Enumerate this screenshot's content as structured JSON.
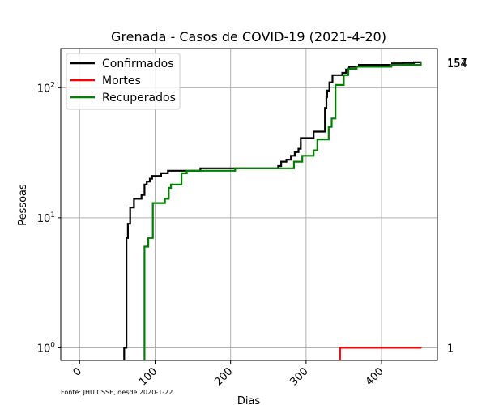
{
  "chart_data": {
    "type": "line",
    "title": "Grenada - Casos de COVID-19 (2021-4-20)",
    "xlabel": "Dias",
    "ylabel": "Pessoas",
    "yscale": "log",
    "xlim": [
      -25,
      474
    ],
    "ylim": [
      0.8,
      200
    ],
    "xticks": [
      0,
      100,
      200,
      300,
      400
    ],
    "xtick_labels": [
      "0",
      "100",
      "200",
      "300",
      "400"
    ],
    "xtick_rotation": 45,
    "yticks": [
      1,
      10,
      100
    ],
    "grid": true,
    "legend_position": "top-left",
    "source_note": "Fonte: JHU CSSE, desde 2020-1-22",
    "series": [
      {
        "name": "Confirmados",
        "color": "#000000",
        "points": [
          [
            59,
            0.5
          ],
          [
            59,
            1
          ],
          [
            62,
            1
          ],
          [
            62,
            7
          ],
          [
            64,
            7
          ],
          [
            64,
            9
          ],
          [
            67,
            9
          ],
          [
            67,
            12
          ],
          [
            72,
            12
          ],
          [
            72,
            14
          ],
          [
            82,
            14
          ],
          [
            82,
            15
          ],
          [
            86,
            15
          ],
          [
            86,
            18
          ],
          [
            89,
            18
          ],
          [
            89,
            19
          ],
          [
            93,
            19
          ],
          [
            93,
            20
          ],
          [
            96,
            20
          ],
          [
            96,
            21
          ],
          [
            108,
            21
          ],
          [
            108,
            22
          ],
          [
            117,
            22
          ],
          [
            117,
            23
          ],
          [
            160,
            23
          ],
          [
            160,
            24
          ],
          [
            178,
            24
          ],
          [
            178,
            24
          ],
          [
            263,
            24
          ],
          [
            263,
            25
          ],
          [
            267,
            25
          ],
          [
            267,
            27
          ],
          [
            274,
            27
          ],
          [
            274,
            28
          ],
          [
            280,
            28
          ],
          [
            280,
            30
          ],
          [
            285,
            30
          ],
          [
            285,
            32
          ],
          [
            290,
            32
          ],
          [
            290,
            34
          ],
          [
            293,
            34
          ],
          [
            293,
            41
          ],
          [
            310,
            41
          ],
          [
            310,
            46
          ],
          [
            325,
            46
          ],
          [
            325,
            70
          ],
          [
            327,
            70
          ],
          [
            327,
            85
          ],
          [
            328,
            85
          ],
          [
            328,
            95
          ],
          [
            331,
            95
          ],
          [
            331,
            110
          ],
          [
            335,
            110
          ],
          [
            335,
            125
          ],
          [
            348,
            125
          ],
          [
            348,
            130
          ],
          [
            353,
            130
          ],
          [
            353,
            138
          ],
          [
            357,
            138
          ],
          [
            357,
            145
          ],
          [
            370,
            145
          ],
          [
            370,
            150
          ],
          [
            414,
            150
          ],
          [
            414,
            154
          ],
          [
            428,
            154
          ],
          [
            428,
            155
          ],
          [
            443,
            155
          ],
          [
            443,
            157
          ],
          [
            453,
            157
          ]
        ]
      },
      {
        "name": "Mortes",
        "color": "#ff0000",
        "points": [
          [
            345,
            0.5
          ],
          [
            345,
            1
          ],
          [
            453,
            1
          ]
        ]
      },
      {
        "name": "Recuperados",
        "color": "#008000",
        "points": [
          [
            86,
            0.5
          ],
          [
            86,
            6
          ],
          [
            91,
            6
          ],
          [
            91,
            7
          ],
          [
            97,
            7
          ],
          [
            97,
            13
          ],
          [
            113,
            13
          ],
          [
            113,
            14
          ],
          [
            118,
            14
          ],
          [
            118,
            17
          ],
          [
            121,
            17
          ],
          [
            121,
            18
          ],
          [
            135,
            18
          ],
          [
            135,
            22
          ],
          [
            142,
            22
          ],
          [
            142,
            23
          ],
          [
            206,
            23
          ],
          [
            206,
            24
          ],
          [
            284,
            24
          ],
          [
            284,
            27
          ],
          [
            295,
            27
          ],
          [
            295,
            30
          ],
          [
            310,
            30
          ],
          [
            310,
            33
          ],
          [
            315,
            33
          ],
          [
            315,
            40
          ],
          [
            330,
            40
          ],
          [
            330,
            50
          ],
          [
            334,
            50
          ],
          [
            334,
            58
          ],
          [
            339,
            58
          ],
          [
            339,
            105
          ],
          [
            350,
            105
          ],
          [
            350,
            125
          ],
          [
            356,
            125
          ],
          [
            356,
            140
          ],
          [
            367,
            140
          ],
          [
            367,
            145
          ],
          [
            413,
            145
          ],
          [
            413,
            150
          ],
          [
            452,
            150
          ],
          [
            452,
            154
          ],
          [
            453,
            154
          ]
        ]
      }
    ],
    "end_labels": [
      {
        "series": "Confirmados",
        "y": 157,
        "text": "157"
      },
      {
        "series": "Recuperados",
        "y": 154,
        "text": "154"
      },
      {
        "series": "Mortes",
        "y": 1,
        "text": "1"
      }
    ]
  }
}
